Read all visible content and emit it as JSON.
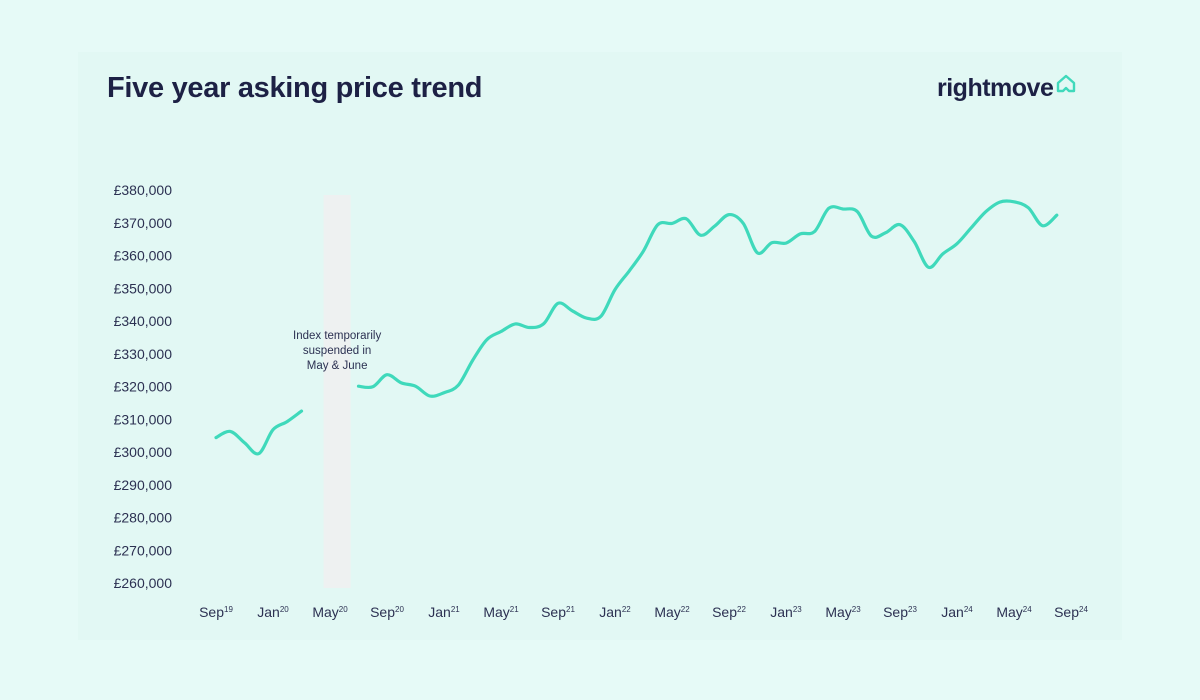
{
  "header": {
    "title": "Five year asking price trend",
    "brand": "rightmove",
    "brand_icon": "house-outline-icon"
  },
  "colors": {
    "line": "#3fd9bb",
    "background": "#e2f8f4",
    "text": "#1d2145",
    "band": "#eef1f1"
  },
  "chart_data": {
    "type": "line",
    "title": "Five year asking price trend",
    "xlabel": "",
    "ylabel": "",
    "ylim": [
      260000,
      380000
    ],
    "y_ticks": [
      "£380,000",
      "£370,000",
      "£360,000",
      "£350,000",
      "£340,000",
      "£330,000",
      "£320,000",
      "£310,000",
      "£300,000",
      "£290,000",
      "£280,000",
      "£270,000",
      "£260,000"
    ],
    "y_tick_values": [
      380000,
      370000,
      360000,
      350000,
      340000,
      330000,
      320000,
      310000,
      300000,
      290000,
      280000,
      270000,
      260000
    ],
    "x_ticks": [
      {
        "month": "Sep",
        "year": "19"
      },
      {
        "month": "Jan",
        "year": "20"
      },
      {
        "month": "May",
        "year": "20"
      },
      {
        "month": "Sep",
        "year": "20"
      },
      {
        "month": "Jan",
        "year": "21"
      },
      {
        "month": "May",
        "year": "21"
      },
      {
        "month": "Sep",
        "year": "21"
      },
      {
        "month": "Jan",
        "year": "22"
      },
      {
        "month": "May",
        "year": "22"
      },
      {
        "month": "Sep",
        "year": "22"
      },
      {
        "month": "Jan",
        "year": "23"
      },
      {
        "month": "May",
        "year": "23"
      },
      {
        "month": "Sep",
        "year": "23"
      },
      {
        "month": "Jan",
        "year": "24"
      },
      {
        "month": "May",
        "year": "24"
      },
      {
        "month": "Sep",
        "year": "24"
      }
    ],
    "grid": false,
    "legend": "none",
    "annotation": {
      "lines": [
        "Index temporarily",
        "suspended in",
        "May & June"
      ],
      "shaded_months": [
        "2020-05",
        "2020-06"
      ]
    },
    "series": [
      {
        "segments": [
          [
            [
              "2019-09",
              304400
            ],
            [
              "2019-10",
              306300
            ],
            [
              "2019-11",
              302800
            ],
            [
              "2019-12",
              299500
            ],
            [
              "2020-01",
              306800
            ],
            [
              "2020-02",
              309300
            ],
            [
              "2020-03",
              312500
            ]
          ],
          [
            [
              "2020-07",
              320100
            ],
            [
              "2020-08",
              319900
            ],
            [
              "2020-09",
              323600
            ],
            [
              "2020-10",
              321100
            ],
            [
              "2020-11",
              320100
            ],
            [
              "2020-12",
              317100
            ],
            [
              "2021-01",
              318100
            ],
            [
              "2021-02",
              320400
            ],
            [
              "2021-03",
              327900
            ],
            [
              "2021-04",
              334300
            ],
            [
              "2021-05",
              336800
            ],
            [
              "2021-06",
              339100
            ],
            [
              "2021-07",
              338000
            ],
            [
              "2021-08",
              339200
            ],
            [
              "2021-09",
              345400
            ],
            [
              "2021-10",
              343100
            ],
            [
              "2021-11",
              340900
            ],
            [
              "2021-12",
              341400
            ],
            [
              "2022-01",
              349600
            ],
            [
              "2022-02",
              355300
            ],
            [
              "2022-03",
              361400
            ],
            [
              "2022-04",
              369400
            ],
            [
              "2022-05",
              369800
            ],
            [
              "2022-06",
              371200
            ],
            [
              "2022-07",
              366200
            ],
            [
              "2022-08",
              369000
            ],
            [
              "2022-09",
              372500
            ],
            [
              "2022-10",
              369800
            ],
            [
              "2022-11",
              360800
            ],
            [
              "2022-12",
              363900
            ],
            [
              "2023-01",
              363800
            ],
            [
              "2023-02",
              366600
            ],
            [
              "2023-03",
              367300
            ],
            [
              "2023-04",
              374400
            ],
            [
              "2023-05",
              374200
            ],
            [
              "2023-06",
              373400
            ],
            [
              "2023-07",
              365900
            ],
            [
              "2023-08",
              367000
            ],
            [
              "2023-09",
              369400
            ],
            [
              "2023-10",
              364200
            ],
            [
              "2023-11",
              356400
            ],
            [
              "2023-12",
              360500
            ],
            [
              "2024-01",
              363600
            ],
            [
              "2024-02",
              368500
            ],
            [
              "2024-03",
              373300
            ],
            [
              "2024-04",
              376300
            ],
            [
              "2024-05",
              376400
            ],
            [
              "2024-06",
              374600
            ],
            [
              "2024-07",
              369100
            ],
            [
              "2024-08",
              372300
            ]
          ]
        ]
      }
    ]
  }
}
